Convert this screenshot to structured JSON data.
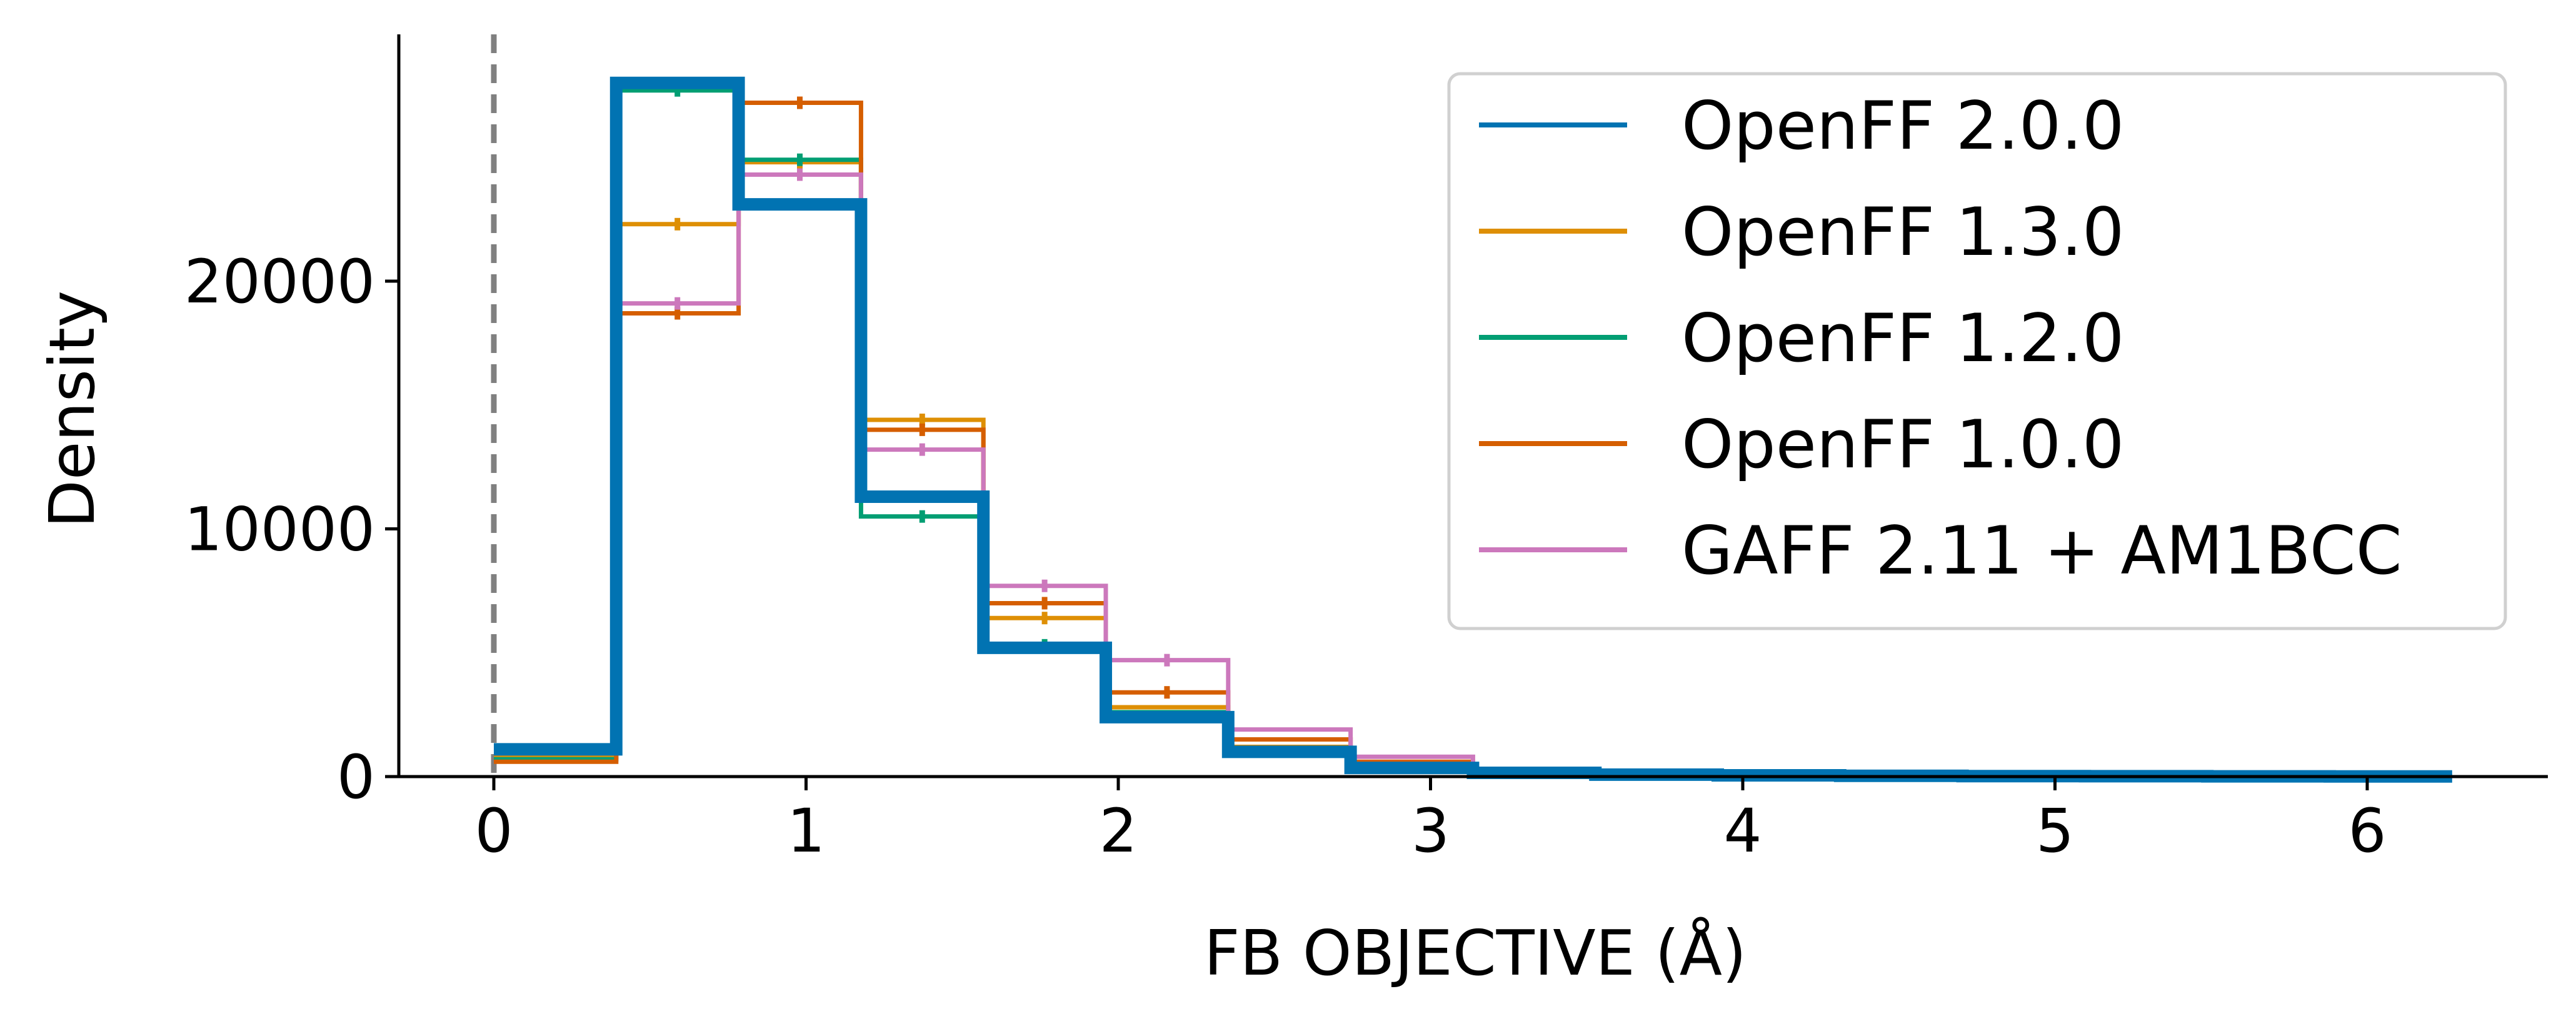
{
  "chart_data": {
    "type": "histogram-step",
    "xlabel": "FB OBJECTIVE (Å)",
    "ylabel": "Density",
    "xlim": [
      -0.31,
      6.56
    ],
    "ylim": [
      0,
      30000
    ],
    "x_ticks": [
      "0",
      "1",
      "2",
      "3",
      "4",
      "5",
      "6"
    ],
    "y_ticks": [
      "0",
      "10000",
      "20000"
    ],
    "grid": false,
    "legend_position": "top-right",
    "reference_line": {
      "x": 0,
      "style": "dashed",
      "color": "#808080"
    },
    "bin_edges": [
      0,
      0.392,
      0.784,
      1.176,
      1.568,
      1.96,
      2.352,
      2.744,
      3.136,
      3.528,
      3.92,
      4.312,
      4.704,
      5.096,
      5.488,
      5.88,
      6.272
    ],
    "series": [
      {
        "name": "OpenFF 1.3.0",
        "color": "#de8f05",
        "values": [
          800,
          22300,
          24800,
          14400,
          6400,
          2800,
          1200,
          500,
          200,
          100,
          60,
          40,
          30,
          20,
          15,
          10
        ]
      },
      {
        "name": "OpenFF 1.2.0",
        "color": "#029e73",
        "values": [
          700,
          27700,
          24900,
          10500,
          5300,
          2600,
          1100,
          450,
          180,
          90,
          50,
          35,
          25,
          18,
          12,
          8
        ]
      },
      {
        "name": "OpenFF 1.0.0",
        "color": "#d55e00",
        "values": [
          600,
          18700,
          27200,
          14000,
          7000,
          3400,
          1500,
          600,
          250,
          110,
          70,
          45,
          30,
          20,
          15,
          10
        ]
      },
      {
        "name": "GAFF 2.11 + AM1BCC",
        "color": "#cc78bc",
        "values": [
          1000,
          19100,
          24300,
          13200,
          7700,
          4700,
          1900,
          800,
          300,
          130,
          80,
          50,
          35,
          25,
          15,
          10
        ]
      },
      {
        "name": "OpenFF 2.0.0",
        "color": "#0173b2",
        "values": [
          1100,
          28000,
          23100,
          11300,
          5200,
          2400,
          1000,
          350,
          150,
          80,
          50,
          30,
          20,
          15,
          10,
          5
        ]
      }
    ],
    "legend_order": [
      "OpenFF 2.0.0",
      "OpenFF 1.3.0",
      "OpenFF 1.2.0",
      "OpenFF 1.0.0",
      "GAFF 2.11 + AM1BCC"
    ]
  }
}
